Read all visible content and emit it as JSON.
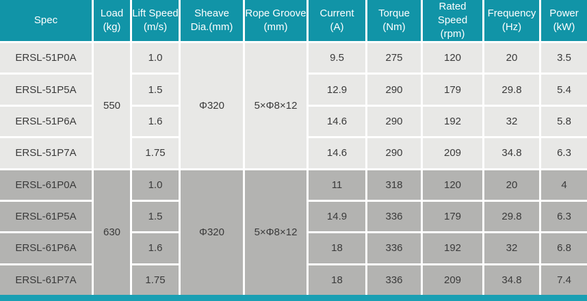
{
  "table": {
    "columns": [
      {
        "label": "Spec",
        "unit": ""
      },
      {
        "label": "Load",
        "unit": "(kg)"
      },
      {
        "label": "Lift Speed",
        "unit": "(m/s)"
      },
      {
        "label": "Sheave",
        "unit": "Dia.(mm)"
      },
      {
        "label": "Rope Groove",
        "unit": "(mm)"
      },
      {
        "label": "Current",
        "unit": "(A)"
      },
      {
        "label": "Torque",
        "unit": "(Nm)"
      },
      {
        "label": "Rated Speed",
        "unit": "(rpm)"
      },
      {
        "label": "Frequency",
        "unit": "(Hz)"
      },
      {
        "label": "Power",
        "unit": "(kW)"
      }
    ],
    "groups": [
      {
        "load": "550",
        "sheave": "Φ320",
        "rope_groove": "5×Φ8×12",
        "rows": [
          {
            "spec": "ERSL-51P0A",
            "lift_speed": "1.0",
            "current": "9.5",
            "torque": "275",
            "rated_speed": "120",
            "frequency": "20",
            "power": "3.5"
          },
          {
            "spec": "ERSL-51P5A",
            "lift_speed": "1.5",
            "current": "12.9",
            "torque": "290",
            "rated_speed": "179",
            "frequency": "29.8",
            "power": "5.4"
          },
          {
            "spec": "ERSL-51P6A",
            "lift_speed": "1.6",
            "current": "14.6",
            "torque": "290",
            "rated_speed": "192",
            "frequency": "32",
            "power": "5.8"
          },
          {
            "spec": "ERSL-51P7A",
            "lift_speed": "1.75",
            "current": "14.6",
            "torque": "290",
            "rated_speed": "209",
            "frequency": "34.8",
            "power": "6.3"
          }
        ]
      },
      {
        "load": "630",
        "sheave": "Φ320",
        "rope_groove": "5×Φ8×12",
        "rows": [
          {
            "spec": "ERSL-61P0A",
            "lift_speed": "1.0",
            "current": "11",
            "torque": "318",
            "rated_speed": "120",
            "frequency": "20",
            "power": "4"
          },
          {
            "spec": "ERSL-61P5A",
            "lift_speed": "1.5",
            "current": "14.9",
            "torque": "336",
            "rated_speed": "179",
            "frequency": "29.8",
            "power": "6.3"
          },
          {
            "spec": "ERSL-61P6A",
            "lift_speed": "1.6",
            "current": "18",
            "torque": "336",
            "rated_speed": "192",
            "frequency": "32",
            "power": "6.8"
          },
          {
            "spec": "ERSL-61P7A",
            "lift_speed": "1.75",
            "current": "18",
            "torque": "336",
            "rated_speed": "209",
            "frequency": "34.8",
            "power": "7.4"
          }
        ]
      }
    ],
    "colors": {
      "header_bg": "#1194a7",
      "footer_bar": "#1a9fb3",
      "group1_bg": "#e8e8e6",
      "group2_bg": "#b3b3b1",
      "separator": "#ffffff",
      "header_text": "#ffffff",
      "body_text": "#3a3a3a"
    }
  }
}
